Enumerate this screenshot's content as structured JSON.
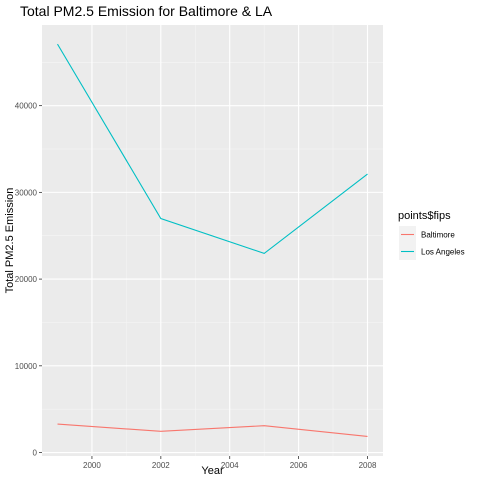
{
  "chart_data": {
    "type": "line",
    "title": "Total PM2.5 Emission for Baltimore & LA",
    "xlabel": "Year",
    "ylabel": "Total PM2.5 Emission",
    "x": [
      1999,
      2002,
      2005,
      2008
    ],
    "series": [
      {
        "name": "Baltimore",
        "color": "#F8766D",
        "values": [
          3274,
          2454,
          3091,
          1862
        ]
      },
      {
        "name": "Los Angeles",
        "color": "#00BFC4",
        "values": [
          47103,
          26992,
          22963,
          32102
        ]
      }
    ],
    "xlim": [
      1998.55,
      2008.45
    ],
    "ylim": [
      -400,
      49300
    ],
    "x_ticks": [
      2000,
      2002,
      2004,
      2006,
      2008
    ],
    "y_ticks": [
      0,
      10000,
      20000,
      30000,
      40000
    ],
    "grid": true,
    "legend": {
      "title": "points$fips",
      "placement": "right"
    }
  }
}
